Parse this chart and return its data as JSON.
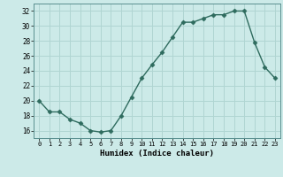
{
  "x": [
    0,
    1,
    2,
    3,
    4,
    5,
    6,
    7,
    8,
    9,
    10,
    11,
    12,
    13,
    14,
    15,
    16,
    17,
    18,
    19,
    20,
    21,
    22,
    23
  ],
  "y": [
    20,
    18.5,
    18.5,
    17.5,
    17,
    16,
    15.8,
    16,
    18,
    20.5,
    23,
    24.8,
    26.5,
    28.5,
    30.5,
    30.5,
    31,
    31.5,
    31.5,
    32,
    32,
    27.8,
    24.5,
    23
  ],
  "line_color": "#2e6b5e",
  "marker_color": "#2e6b5e",
  "bg_color": "#cceae8",
  "grid_color": "#b0d5d2",
  "xlabel": "Humidex (Indice chaleur)",
  "ylim": [
    15,
    33
  ],
  "xlim": [
    -0.5,
    23.5
  ],
  "yticks": [
    16,
    18,
    20,
    22,
    24,
    26,
    28,
    30,
    32
  ],
  "xticks": [
    0,
    1,
    2,
    3,
    4,
    5,
    6,
    7,
    8,
    9,
    10,
    11,
    12,
    13,
    14,
    15,
    16,
    17,
    18,
    19,
    20,
    21,
    22,
    23
  ]
}
